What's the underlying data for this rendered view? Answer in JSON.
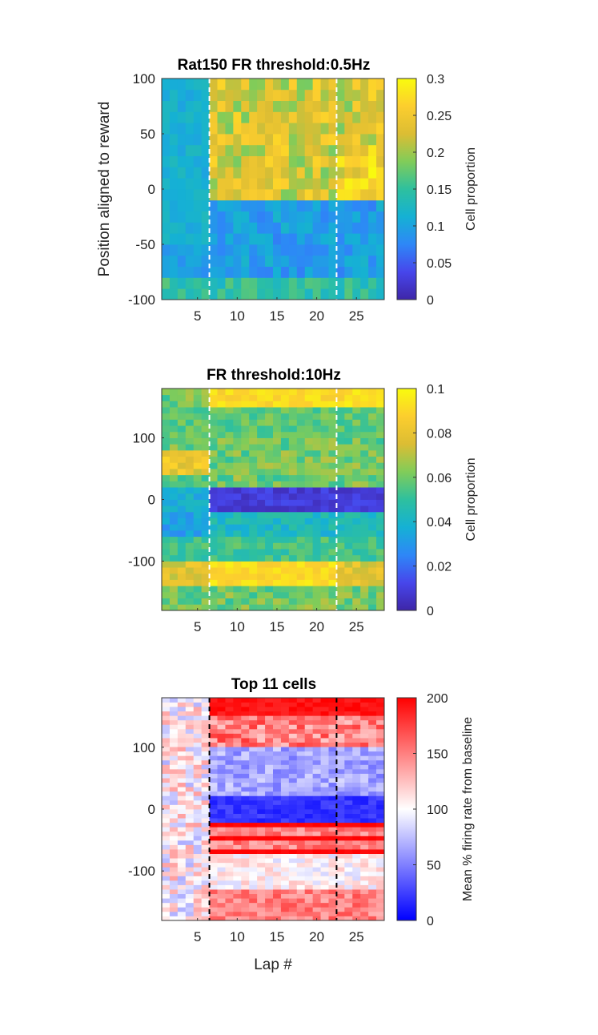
{
  "chart_data": [
    {
      "type": "heatmap",
      "title": "Rat150 FR threshold:0.5Hz",
      "xlabel": "",
      "ylabel": "Position aligned to reward",
      "xlim": [
        0.5,
        28.5
      ],
      "ylim": [
        -100,
        100
      ],
      "xticks": [
        5,
        10,
        15,
        20,
        25
      ],
      "yticks": [
        -100,
        -50,
        0,
        50,
        100
      ],
      "n_laps": 28,
      "n_bins": 20,
      "vlines": [
        6.5,
        22.5
      ],
      "vline_color": "#ffffff",
      "colormap": "parula",
      "colorbar": {
        "label": "Cell proportion",
        "min": 0,
        "max": 0.3,
        "ticks": [
          0,
          0.05,
          0.1,
          0.15,
          0.2,
          0.25,
          0.3
        ]
      },
      "pattern": "Low proportion (~0.05–0.12) for laps 1–6; after lap 6 positions 0 to 100 rise to ~0.2–0.3, negative positions stay ~0.05–0.12"
    },
    {
      "type": "heatmap",
      "title": "FR threshold:10Hz",
      "xlabel": "",
      "ylabel": "",
      "xlim": [
        0.5,
        28.5
      ],
      "ylim": [
        -180,
        180
      ],
      "xticks": [
        5,
        10,
        15,
        20,
        25
      ],
      "yticks": [
        -100,
        0,
        100
      ],
      "n_laps": 28,
      "n_bins": 36,
      "vlines": [
        6.5,
        22.5
      ],
      "vline_color": "#ffffff",
      "colormap": "parula",
      "colorbar": {
        "label": "Cell proportion",
        "min": 0,
        "max": 0.1,
        "ticks": [
          0,
          0.02,
          0.04,
          0.06,
          0.08,
          0.1
        ]
      },
      "pattern": "Low band (~0.005) around 0 after lap 6; high bands (~0.09) near -120 and +170"
    },
    {
      "type": "heatmap",
      "title": "Top 11 cells",
      "xlabel": "Lap #",
      "ylabel": "",
      "xlim": [
        0.5,
        28.5
      ],
      "ylim": [
        -180,
        180
      ],
      "xticks": [
        5,
        10,
        15,
        20,
        25
      ],
      "yticks": [
        -100,
        0,
        100
      ],
      "n_laps": 28,
      "n_bins": 50,
      "vlines": [
        6.5,
        22.5
      ],
      "vline_color": "#000000",
      "colormap": "blue-white-red",
      "colorbar": {
        "label": "Mean % firing rate from baseline",
        "min": 0,
        "max": 200,
        "ticks": [
          0,
          50,
          100,
          150,
          200
        ]
      },
      "pattern": "Near 100% before lap 6; after lap 6 strong blue (~10) around 0–100, strong red stripes (~200) around -30 to -70 and near +160"
    }
  ]
}
